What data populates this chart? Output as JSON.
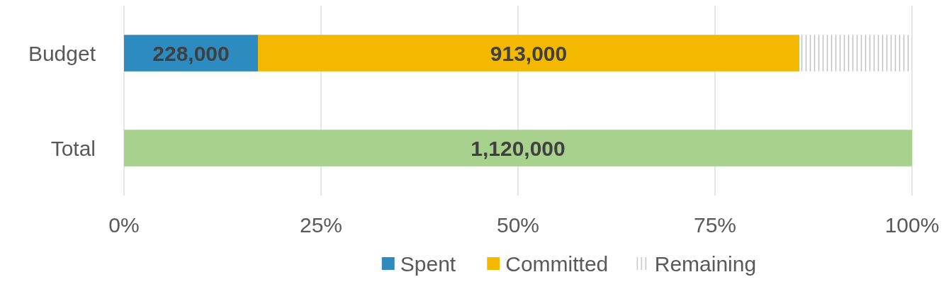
{
  "chart_data": {
    "type": "bar",
    "orientation": "horizontal",
    "stacked": true,
    "categories": [
      "Budget",
      "Total"
    ],
    "series": [
      {
        "name": "Spent",
        "color": "#2e8bc0",
        "values": [
          17,
          null
        ]
      },
      {
        "name": "Committed",
        "color": "#f5b800",
        "values": [
          68.7,
          null
        ]
      },
      {
        "name": "Remaining",
        "color": "#bfbfbf",
        "values": [
          14.3,
          null
        ],
        "line_style": "dashed"
      },
      {
        "color": "#a9d18e",
        "values": [
          null,
          100
        ]
      }
    ],
    "annotations": [
      "228,000",
      "913,000",
      "1,120,000"
    ],
    "xlim": [
      0,
      100
    ],
    "xticks": [
      {
        "value": 0,
        "label": "0%"
      },
      {
        "value": 25,
        "label": "25%"
      },
      {
        "value": 50,
        "label": "50%"
      },
      {
        "value": 75,
        "label": "75%"
      },
      {
        "value": 100,
        "label": "100%"
      }
    ],
    "grid": "x",
    "legend": "bottom"
  }
}
